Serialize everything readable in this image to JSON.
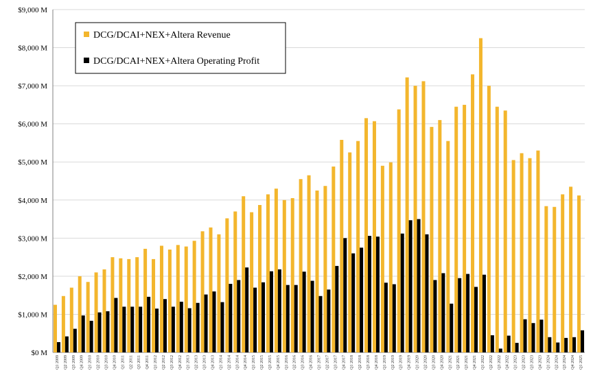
{
  "colors": {
    "revenue": "#F3B62D",
    "profit": "#000000",
    "gridline": "#d9d9d9",
    "axis": "#808080"
  },
  "chart_data": {
    "type": "bar",
    "grid": true,
    "legend_position": "top-left",
    "ylim": [
      0,
      9000
    ],
    "y_ticks": [
      0,
      1000,
      2000,
      3000,
      4000,
      5000,
      6000,
      7000,
      8000,
      9000
    ],
    "y_tick_labels": [
      "$0 M",
      "$1,000 M",
      "$2,000 M",
      "$3,000 M",
      "$4,000 M",
      "$5,000 M",
      "$6,000 M",
      "$7,000 M",
      "$8,000 M",
      "$9,000 M"
    ],
    "categories": [
      "Q1 2009",
      "Q2 2009",
      "Q3 2009",
      "Q4 2009",
      "Q1 2010",
      "Q2 2010",
      "Q3 2010",
      "Q4 2010",
      "Q1 2011",
      "Q2 2011",
      "Q3 2011",
      "Q4 2011",
      "Q1 2012",
      "Q2 2012",
      "Q3 2012",
      "Q4 2012",
      "Q1 2013",
      "Q2 2013",
      "Q3 2013",
      "Q4 2013",
      "Q1 2014",
      "Q2 2014",
      "Q3 2014",
      "Q4 2014",
      "Q1 2015",
      "Q2 2015",
      "Q3 2015",
      "Q4 2015",
      "Q1 2016",
      "Q2 2016",
      "Q3 2016",
      "Q4 2016",
      "Q1 2017",
      "Q2 2017",
      "Q3 2017",
      "Q4 2017",
      "Q1 2018",
      "Q2 2018",
      "Q3 2018",
      "Q4 2018",
      "Q1 2019",
      "Q2 2019",
      "Q3 2019",
      "Q4 2019",
      "Q1 2020",
      "Q2 2020",
      "Q3 2020",
      "Q4 2020",
      "Q1 2021",
      "Q2 2021",
      "Q3 2021",
      "Q4 2021",
      "Q1 2022",
      "Q2 2022",
      "Q3 2022",
      "Q4 2022",
      "Q1 2023",
      "Q2 2023",
      "Q3 2023",
      "Q4 2023",
      "Q1 2024",
      "Q2 2024",
      "Q3 2024",
      "Q4 2024",
      "Q1 2025"
    ],
    "series": [
      {
        "name": "DCG/DCAI+NEX+Altera Revenue",
        "values": [
          1250,
          1480,
          1700,
          2000,
          1850,
          2100,
          2180,
          2500,
          2470,
          2450,
          2500,
          2720,
          2450,
          2800,
          2700,
          2820,
          2780,
          2930,
          3180,
          3280,
          3100,
          3520,
          3700,
          4100,
          3680,
          3870,
          4150,
          4300,
          4000,
          4050,
          4550,
          4650,
          4250,
          4370,
          4880,
          5580,
          5250,
          5550,
          6150,
          6070,
          4900,
          4990,
          6380,
          7220,
          7000,
          7120,
          5920,
          6100,
          5550,
          6450,
          6500,
          7300,
          8250,
          7000,
          6450,
          6350,
          5050,
          5230,
          5100,
          5300,
          3840,
          3820,
          4150,
          4350,
          4120
        ]
      },
      {
        "name": "DCG/DCAI+NEX+Altera Operating Profit",
        "values": [
          270,
          420,
          620,
          970,
          830,
          1050,
          1080,
          1430,
          1200,
          1200,
          1200,
          1460,
          1150,
          1400,
          1200,
          1330,
          1160,
          1300,
          1520,
          1600,
          1320,
          1800,
          1900,
          2230,
          1700,
          1840,
          2130,
          2180,
          1770,
          1770,
          2120,
          1880,
          1480,
          1650,
          2270,
          3000,
          2600,
          2750,
          3060,
          3040,
          1830,
          1790,
          3120,
          3470,
          3500,
          3100,
          1900,
          2080,
          1280,
          1950,
          2060,
          1720,
          2040,
          450,
          100,
          440,
          250,
          870,
          770,
          860,
          400,
          260,
          380,
          400,
          580
        ]
      }
    ]
  }
}
